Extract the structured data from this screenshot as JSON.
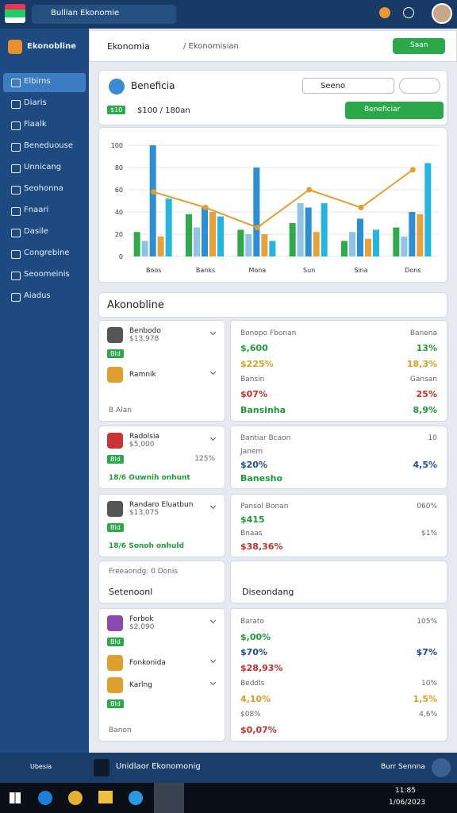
{
  "topbar": {
    "app": "Bullian Ekonomie"
  },
  "sidebar": {
    "brand": "Ekonobline",
    "items": [
      "Elbirns",
      "Diaris",
      "Fiaalk",
      "Beneduouse",
      "Unnicang",
      "Seohonna",
      "Fnaari",
      "Dasile",
      "Congrebine",
      "Seoomeinis",
      "Aiadus"
    ]
  },
  "header": {
    "title": "Ekonomia",
    "path": "/ Ekonomisian",
    "button": "Saan"
  },
  "summary": {
    "title": "Beneficia",
    "select": "Seeno",
    "button": "Beneficiar",
    "badge": "$10",
    "amount": "$100 / 180an"
  },
  "chart": {
    "type": "bar",
    "categories": [
      "Boos",
      "Banks",
      "Mona",
      "Sun",
      "Sina",
      "Dons"
    ],
    "series": [
      {
        "color": "#2eaa4a",
        "values": [
          22,
          38,
          24,
          30,
          14,
          26
        ]
      },
      {
        "color": "#8fc4e8",
        "values": [
          14,
          26,
          20,
          48,
          22,
          18
        ]
      },
      {
        "color": "#2a8fd6",
        "values": [
          100,
          44,
          80,
          44,
          34,
          40
        ]
      },
      {
        "color": "#e8a23a",
        "values": [
          18,
          40,
          20,
          22,
          16,
          38
        ]
      },
      {
        "color": "#22b8dd",
        "values": [
          52,
          36,
          14,
          48,
          24,
          84
        ]
      }
    ],
    "line": {
      "color": "#e0a030",
      "values": [
        58,
        44,
        26,
        60,
        44,
        78
      ]
    },
    "ylim": [
      0,
      100
    ],
    "yticks": [
      0,
      20,
      40,
      60,
      80,
      100
    ]
  },
  "section_title": "Akonobline",
  "accounts": [
    {
      "rows": [
        {
          "name": "Benbodo",
          "sub": "$13,978"
        },
        {
          "tag": "Bld"
        },
        {
          "name": "Ramnik"
        }
      ],
      "foot": "B Alan"
    },
    {
      "rows": [
        {
          "name": "Radolsia",
          "sub": "$5,000"
        },
        {
          "tag": "Bld",
          "right": "125%"
        }
      ],
      "foot": "18/6 Ouwnih onhunt"
    },
    {
      "rows": [
        {
          "name": "Randaro Eluatbun",
          "sub": "$13,075"
        },
        {
          "tag": "Bld"
        }
      ],
      "foot": "18/6 Sonoh onhuld"
    },
    {
      "rows": [
        {
          "name": "Forbok",
          "sub": "$2,090"
        },
        {
          "tag": "Bld"
        },
        {
          "name": "Fonkonida"
        },
        {
          "name": "Karlng"
        },
        {
          "tag": "Bld"
        }
      ],
      "foot": "Banon"
    }
  ],
  "stats": [
    {
      "lines": [
        {
          "left": "Bonopo Fbonan",
          "right": "Banena",
          "tone": "muted"
        },
        {
          "left": "$,600",
          "right": "13%",
          "tone": "green"
        },
        {
          "left": "$225%",
          "right": "18,3%",
          "tone": "gold"
        },
        {
          "left": "Bansin",
          "right": "Gansan",
          "tone": "muted"
        },
        {
          "left": "$07%",
          "right": "25%",
          "tone": "red"
        },
        {
          "left": "Bansinha",
          "right": "8,9%",
          "tone": "green"
        }
      ]
    },
    {
      "lines": [
        {
          "left": "Bantiar Bcaon",
          "right": "10",
          "tone": "muted"
        },
        {
          "left": "Janem",
          "right": "",
          "tone": "muted"
        },
        {
          "left": "$20%",
          "right": "4,5%",
          "tone": "blue"
        },
        {
          "left": "Banesho",
          "right": "",
          "tone": "green"
        }
      ]
    },
    {
      "lines": [
        {
          "left": "Pansol Bonan",
          "right": "060%",
          "tone": "muted"
        },
        {
          "left": "$415",
          "right": "",
          "tone": "green"
        },
        {
          "left": "Bnaas",
          "right": "$1%",
          "tone": "muted"
        },
        {
          "left": "$38,36%",
          "right": "",
          "tone": "red"
        }
      ]
    },
    {
      "lines": [
        {
          "left": "Barato",
          "right": "105%",
          "tone": "muted"
        },
        {
          "left": "$,00%",
          "right": "",
          "tone": "green"
        },
        {
          "left": "$70%",
          "right": "$7%",
          "tone": "blue"
        },
        {
          "left": "$28,93%",
          "right": "",
          "tone": "red"
        },
        {
          "left": "Beddls",
          "right": "10%",
          "tone": "muted"
        },
        {
          "left": "4,10%",
          "right": "1,5%",
          "tone": "gold"
        },
        {
          "left": "$08%",
          "right": "4,6%",
          "tone": "muted"
        },
        {
          "left": "$0,07%",
          "right": "",
          "tone": "red"
        }
      ]
    }
  ],
  "mid": {
    "left_label": "Freeaondg: 0 Donis",
    "left_title": "Setenoonl",
    "right_title": "Diseondang"
  },
  "footer": {
    "status": "Ubesia",
    "app": "Unidlaor Ekonomonig",
    "right": "Burr Sennna"
  },
  "taskbar": {
    "clock": "11:85",
    "date": "1/06/2023"
  }
}
